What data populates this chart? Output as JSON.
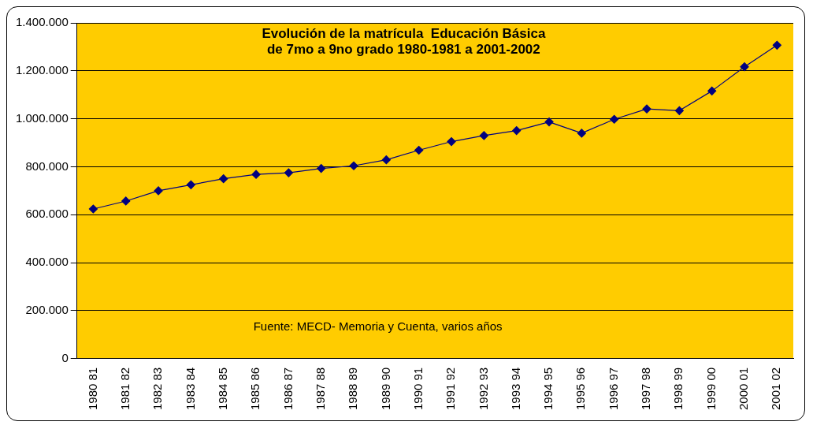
{
  "chart_data": {
    "type": "line",
    "title": "Evolución de la matrícula  Educación Básica\nde 7mo a 9no grado 1980-1981 a 2001-2002",
    "categories": [
      "1980 81",
      "1981 82",
      "1982 83",
      "1983 84",
      "1984 85",
      "1985 86",
      "1986 87",
      "1987 88",
      "1988 89",
      "1989 90",
      "1990 91",
      "1991 92",
      "1992 93",
      "1993 94",
      "1994 95",
      "1995 96",
      "1996 97",
      "1997 98",
      "1998 99",
      "1999 00",
      "2000 01",
      "2001 02"
    ],
    "series": [
      {
        "color": "#000080",
        "values": [
          624000,
          657000,
          700000,
          725000,
          750000,
          768000,
          775000,
          793000,
          804000,
          829000,
          869000,
          905000,
          930000,
          951000,
          987000,
          940000,
          998000,
          1041000,
          1034000,
          1116000,
          1217000,
          1307000
        ]
      }
    ],
    "ylim": [
      0,
      1400000
    ],
    "yticks": [
      {
        "value": 0,
        "label": "0"
      },
      {
        "value": 200000,
        "label": "200.000"
      },
      {
        "value": 400000,
        "label": "400.000"
      },
      {
        "value": 600000,
        "label": "600.000"
      },
      {
        "value": 800000,
        "label": "800.000"
      },
      {
        "value": 1000000,
        "label": "1.000.000"
      },
      {
        "value": 1200000,
        "label": "1.200.000"
      },
      {
        "value": 1400000,
        "label": "1.400.000"
      }
    ],
    "grid": "y",
    "legend": false,
    "marker": "diamond",
    "line_style": "solid",
    "annotations": [
      "Fuente: MECD- Memoria y Cuenta, varios años"
    ]
  }
}
